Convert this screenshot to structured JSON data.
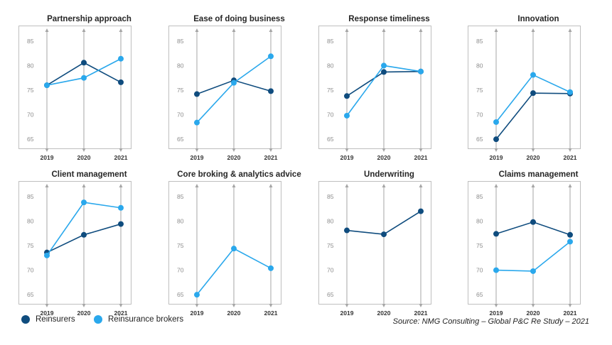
{
  "chart_data": [
    {
      "type": "line",
      "title": "Partnership  approach",
      "categories": [
        "2019",
        "2020",
        "2021"
      ],
      "yticks": [
        65,
        70,
        75,
        80,
        85
      ],
      "ylim": [
        63,
        87
      ],
      "series": [
        {
          "name": "Reinsurers",
          "values": [
            76.0,
            80.6,
            76.6
          ]
        },
        {
          "name": "Reinsurance brokers",
          "values": [
            76.0,
            77.5,
            81.4
          ]
        }
      ]
    },
    {
      "type": "line",
      "title": "Ease of doing business",
      "categories": [
        "2019",
        "2020",
        "2021"
      ],
      "yticks": [
        65,
        70,
        75,
        80,
        85
      ],
      "ylim": [
        63,
        87
      ],
      "series": [
        {
          "name": "Reinsurers",
          "values": [
            74.2,
            77.0,
            74.8
          ]
        },
        {
          "name": "Reinsurance brokers",
          "values": [
            68.4,
            76.5,
            81.9
          ]
        }
      ]
    },
    {
      "type": "line",
      "title": "Response timeliness",
      "categories": [
        "2019",
        "2020",
        "2021"
      ],
      "yticks": [
        65,
        70,
        75,
        80,
        85
      ],
      "ylim": [
        63,
        87
      ],
      "series": [
        {
          "name": "Reinsurers",
          "values": [
            73.8,
            78.7,
            78.8
          ]
        },
        {
          "name": "Reinsurance brokers",
          "values": [
            69.8,
            80.0,
            78.8
          ]
        }
      ]
    },
    {
      "type": "line",
      "title": "Innovation",
      "categories": [
        "2019",
        "2020",
        "2021"
      ],
      "yticks": [
        65,
        70,
        75,
        80,
        85
      ],
      "ylim": [
        63,
        87
      ],
      "series": [
        {
          "name": "Reinsurers",
          "values": [
            65.0,
            74.4,
            74.3
          ]
        },
        {
          "name": "Reinsurance brokers",
          "values": [
            68.5,
            78.1,
            74.6
          ]
        }
      ]
    },
    {
      "type": "line",
      "title": "Client management",
      "categories": [
        "2019",
        "2020",
        "2021"
      ],
      "yticks": [
        65,
        70,
        75,
        80,
        85
      ],
      "ylim": [
        63,
        87
      ],
      "series": [
        {
          "name": "Reinsurers",
          "values": [
            73.6,
            77.2,
            79.4
          ]
        },
        {
          "name": "Reinsurance brokers",
          "values": [
            73.0,
            83.8,
            82.7
          ]
        }
      ]
    },
    {
      "type": "line",
      "title": "Core broking & analytics advice",
      "categories": [
        "2019",
        "2020",
        "2021"
      ],
      "yticks": [
        65,
        70,
        75,
        80,
        85
      ],
      "ylim": [
        63,
        87
      ],
      "series": [
        {
          "name": "Reinsurers",
          "values": [
            null,
            null,
            null
          ]
        },
        {
          "name": "Reinsurance brokers",
          "values": [
            65.0,
            74.4,
            70.4
          ]
        }
      ]
    },
    {
      "type": "line",
      "title": "Underwriting",
      "categories": [
        "2019",
        "2020",
        "2021"
      ],
      "yticks": [
        65,
        70,
        75,
        80,
        85
      ],
      "ylim": [
        63,
        87
      ],
      "series": [
        {
          "name": "Reinsurers",
          "values": [
            78.1,
            77.3,
            82.0
          ]
        },
        {
          "name": "Reinsurance brokers",
          "values": [
            null,
            null,
            null
          ]
        }
      ]
    },
    {
      "type": "line",
      "title": "Claims management",
      "categories": [
        "2019",
        "2020",
        "2021"
      ],
      "yticks": [
        65,
        70,
        75,
        80,
        85
      ],
      "ylim": [
        63,
        87
      ],
      "series": [
        {
          "name": "Reinsurers",
          "values": [
            77.4,
            79.8,
            77.2
          ]
        },
        {
          "name": "Reinsurance brokers",
          "values": [
            70.0,
            69.8,
            75.8
          ]
        }
      ]
    }
  ],
  "colors": {
    "Reinsurers": "#0f4c7e",
    "Reinsurance brokers": "#2aa8ec",
    "axis": "#a6a6a6",
    "frame": "#bfbfbf"
  },
  "legend": {
    "reinsurers": "Reinsurers",
    "brokers": "Reinsurance brokers"
  },
  "source": "Source: NMG Consulting – Global P&C Re Study – 2021"
}
